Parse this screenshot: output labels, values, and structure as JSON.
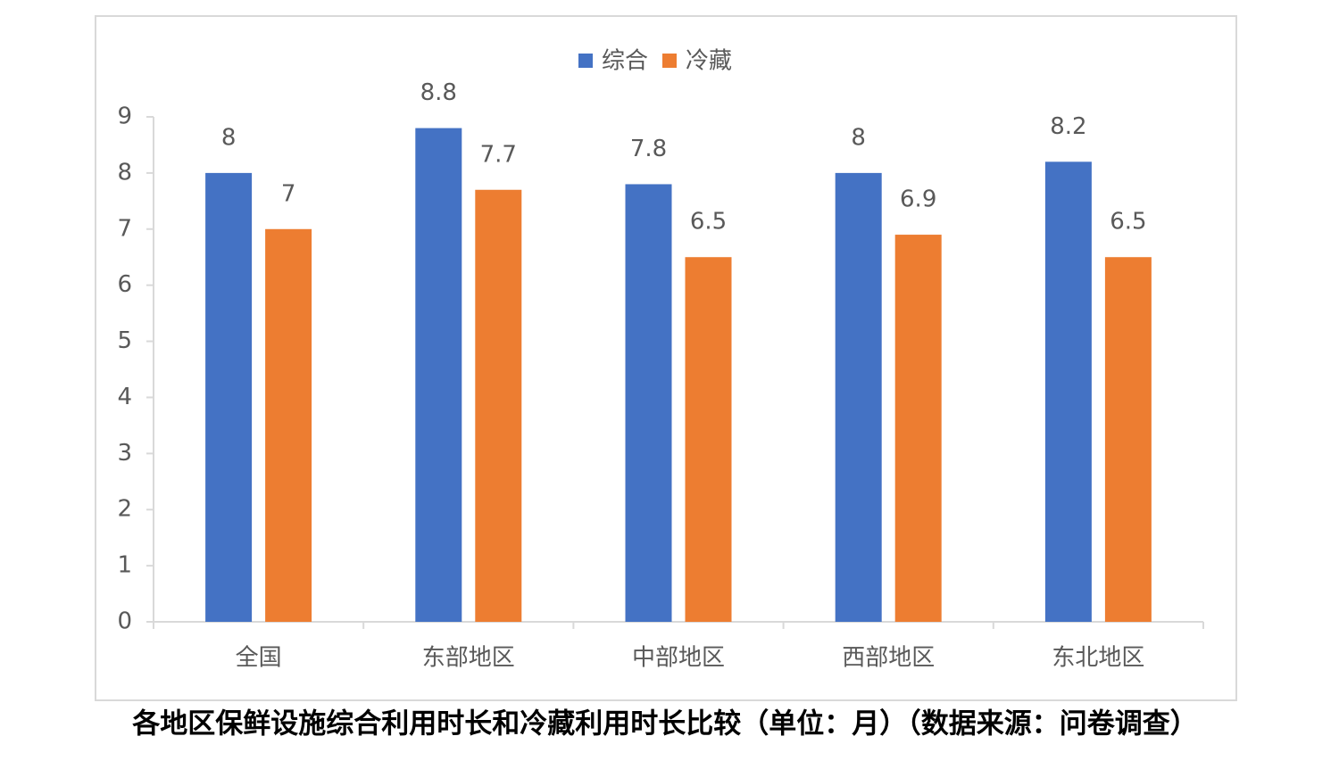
{
  "chart_data": {
    "type": "bar",
    "title": "各地区保鲜设施综合利用时长和冷藏利用时长比较（单位：月）（数据来源：问卷调查）",
    "categories": [
      "全国",
      "东部地区",
      "中部地区",
      "西部地区",
      "东北地区"
    ],
    "series": [
      {
        "name": "综合",
        "color": "#4472c4",
        "values": [
          8,
          8.8,
          7.8,
          8,
          8.2
        ]
      },
      {
        "name": "冷藏",
        "color": "#ed7d31",
        "values": [
          7,
          7.7,
          6.5,
          6.9,
          6.5
        ]
      }
    ],
    "ylim": [
      0,
      9
    ],
    "yticks": [
      0,
      1,
      2,
      3,
      4,
      5,
      6,
      7,
      8,
      9
    ],
    "grid": false,
    "legend": "top"
  }
}
